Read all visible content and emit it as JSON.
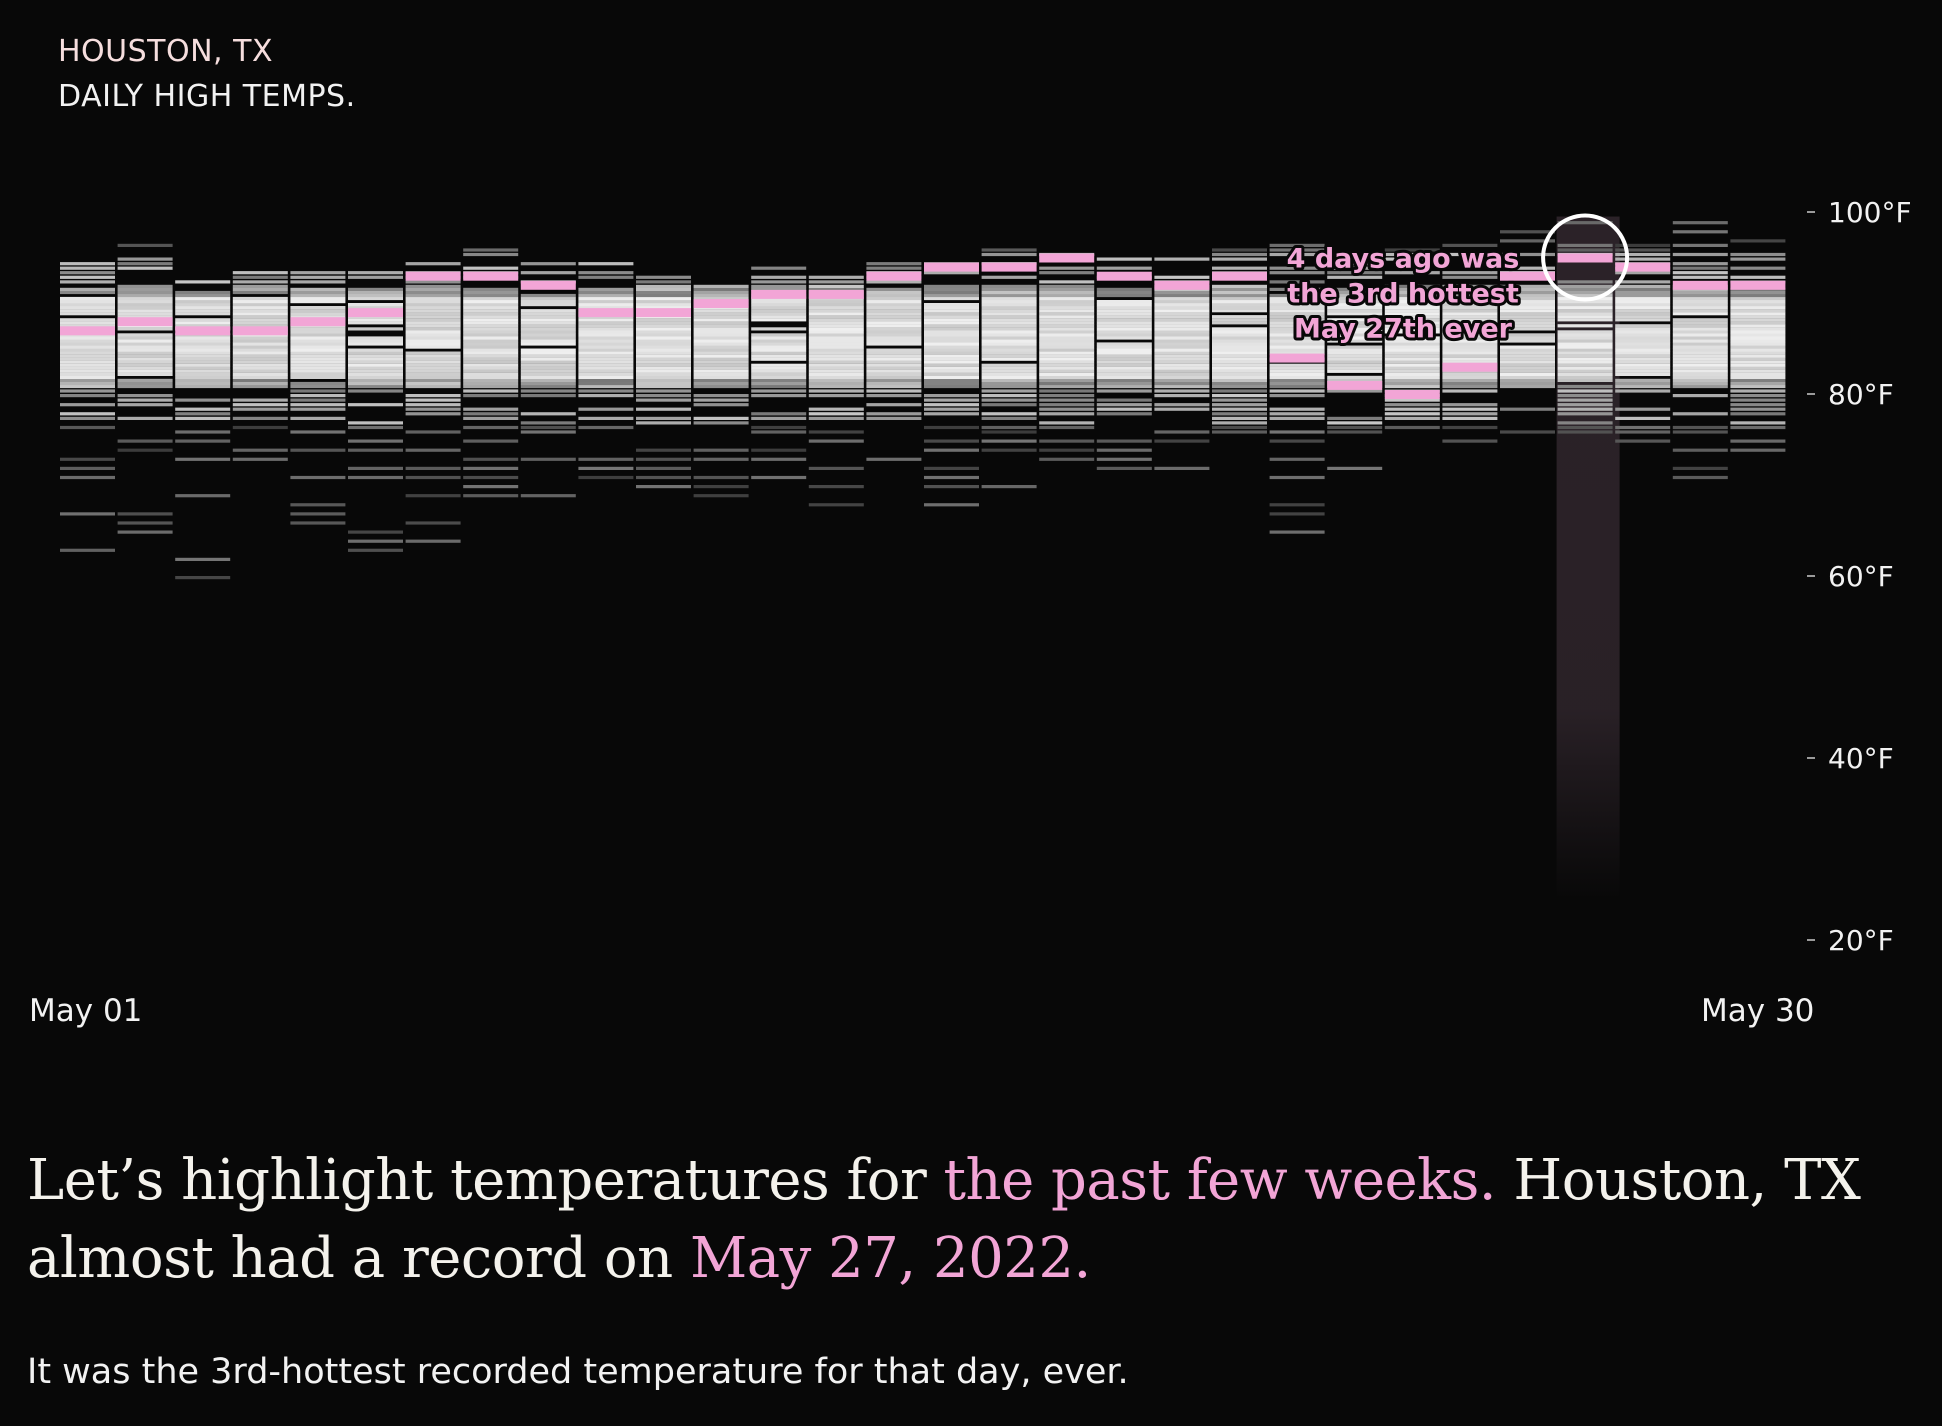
{
  "header": {
    "city": "HOUSTON, TX",
    "subtitle": "DAILY HIGH TEMPS."
  },
  "x_axis": {
    "start_label": "May 01",
    "end_label": "May 30"
  },
  "annotation": {
    "lines": [
      "4 days ago was",
      "the 3rd hottest",
      "May 27th ever"
    ]
  },
  "headline": {
    "part1": "Let’s highlight temperatures for ",
    "part2": "the past few weeks.",
    "part3": " Houston, TX almost had a record on ",
    "part4": "May 27, 2022."
  },
  "subtext": "It was the 3rd-hottest recorded temperature for that day, ever.",
  "colors": {
    "background": "#080808",
    "highlight": "#f2a5d6",
    "record_rank_gray": "#d0d0d0"
  },
  "chart_data": {
    "type": "strip",
    "title": "DAILY HIGH TEMPS.",
    "location": "HOUSTON, TX",
    "unit": "°F",
    "ylim": [
      20,
      100
    ],
    "yticks": [
      20,
      40,
      60,
      80,
      100
    ],
    "ytick_labels": [
      "20°F",
      "40°F",
      "60°F",
      "80°F",
      "100°F"
    ],
    "x_range": [
      "May 01",
      "May 30"
    ],
    "highlighted_day": "May 27",
    "highlighted_day_index": 27,
    "days": [
      {
        "day": 1,
        "recent": 87,
        "min": 62,
        "max": 94,
        "recent_mark": "2022"
      },
      {
        "day": 2,
        "recent": 88,
        "min": 65,
        "max": 96
      },
      {
        "day": 3,
        "recent": 87,
        "min": 60,
        "max": 93
      },
      {
        "day": 4,
        "recent": 87,
        "min": 69,
        "max": 94
      },
      {
        "day": 5,
        "recent": 88,
        "min": 66,
        "max": 93
      },
      {
        "day": 6,
        "recent": 89,
        "min": 63,
        "max": 94
      },
      {
        "day": 7,
        "recent": 93,
        "min": 64,
        "max": 94
      },
      {
        "day": 8,
        "recent": 93,
        "min": 69,
        "max": 96
      },
      {
        "day": 9,
        "recent": 92,
        "min": 67,
        "max": 94
      },
      {
        "day": 10,
        "recent": 89,
        "min": 69,
        "max": 94
      },
      {
        "day": 11,
        "recent": 89,
        "min": 70,
        "max": 94
      },
      {
        "day": 12,
        "recent": 90,
        "min": 68,
        "max": 92
      },
      {
        "day": 13,
        "recent": 91,
        "min": 71,
        "max": 94
      },
      {
        "day": 14,
        "recent": 91,
        "min": 66,
        "max": 93
      },
      {
        "day": 15,
        "recent": 93,
        "min": 72,
        "max": 94
      },
      {
        "day": 16,
        "recent": 94,
        "min": 68,
        "max": 94
      },
      {
        "day": 17,
        "recent": 94,
        "min": 68,
        "max": 96
      },
      {
        "day": 18,
        "recent": 95,
        "min": 72,
        "max": 95
      },
      {
        "day": 19,
        "recent": 93,
        "min": 70,
        "max": 95
      },
      {
        "day": 20,
        "recent": 92,
        "min": 72,
        "max": 95
      },
      {
        "day": 21,
        "recent": 93,
        "min": 71,
        "max": 96
      },
      {
        "day": 22,
        "recent": 84,
        "min": 65,
        "max": 96
      },
      {
        "day": 23,
        "recent": 81,
        "min": 72,
        "max": 95
      },
      {
        "day": 24,
        "recent": 80,
        "min": 74,
        "max": 96
      },
      {
        "day": 25,
        "recent": 83,
        "min": 74,
        "max": 96
      },
      {
        "day": 26,
        "recent": 93,
        "min": 76,
        "max": 98
      },
      {
        "day": 27,
        "recent": 95,
        "min": 74,
        "max": 99
      },
      {
        "day": 28,
        "recent": 94,
        "min": 73,
        "max": 98
      },
      {
        "day": 29,
        "recent": 92,
        "min": 69,
        "max": 99
      },
      {
        "day": 30,
        "recent": 92,
        "min": 73,
        "max": 97
      }
    ]
  }
}
